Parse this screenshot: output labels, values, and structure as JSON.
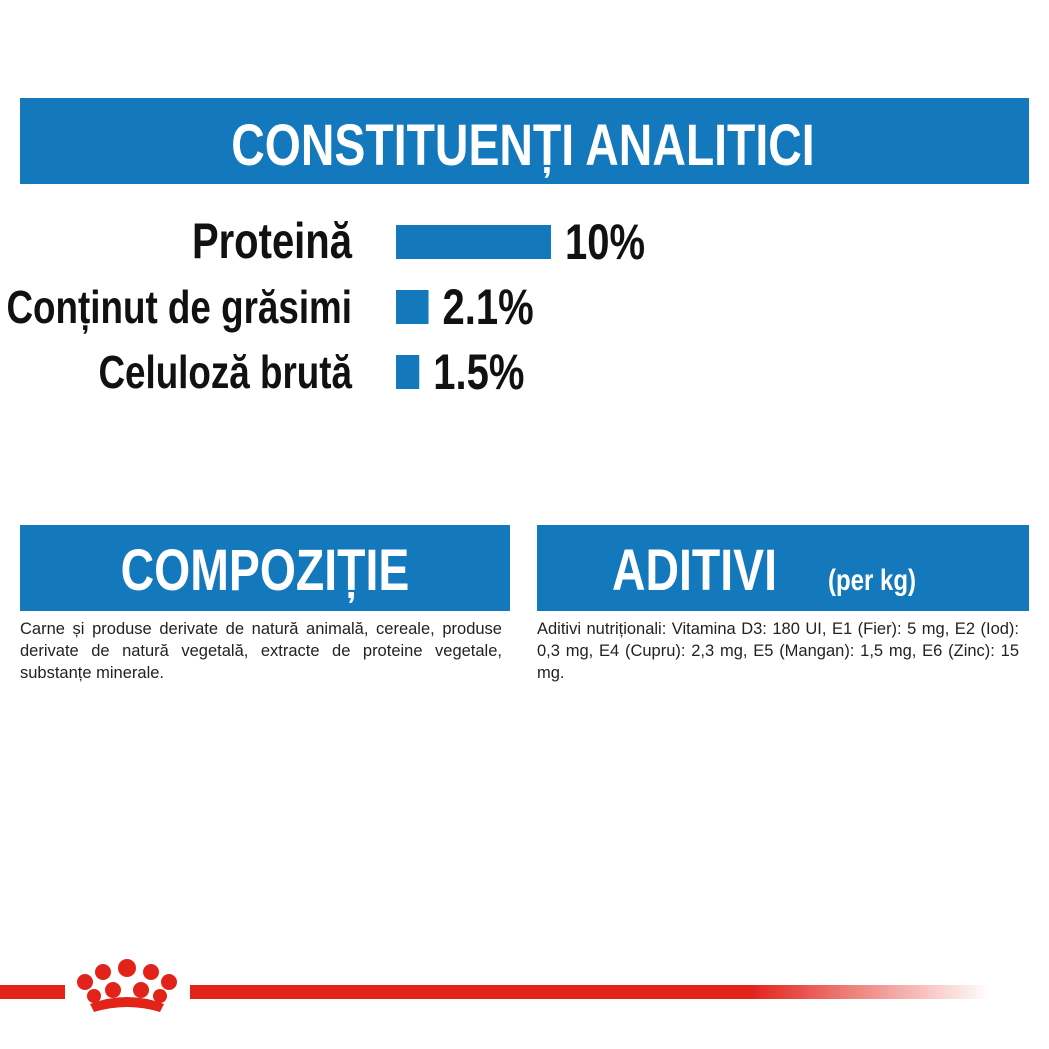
{
  "chart_data": {
    "type": "bar",
    "title": "CONSTITUENȚI ANALITICI",
    "categories": [
      "Proteină",
      "Conținut de grăsimi",
      "Celuloză brută"
    ],
    "values": [
      10,
      2.1,
      1.5
    ],
    "value_labels": [
      "10%",
      "2.1%",
      "1.5%"
    ],
    "color": "#1479bc"
  },
  "sections": [
    {
      "title": "COMPOZIȚIE",
      "text": "Carne și produse derivate de natură animală, cereale, produse derivate de natură vegetală, extracte de proteine vegetale, substanțe minerale."
    },
    {
      "title": "ADITIVI",
      "subtitle": "(per kg)",
      "text": "Aditivi nutriționali: Vitamina D3: 180 UI, E1 (Fier): 5 mg, E2 (Iod): 0,3 mg, E4 (Cupru): 2,3 mg, E5 (Mangan): 1,5 mg, E6 (Zinc): 15 mg."
    }
  ]
}
